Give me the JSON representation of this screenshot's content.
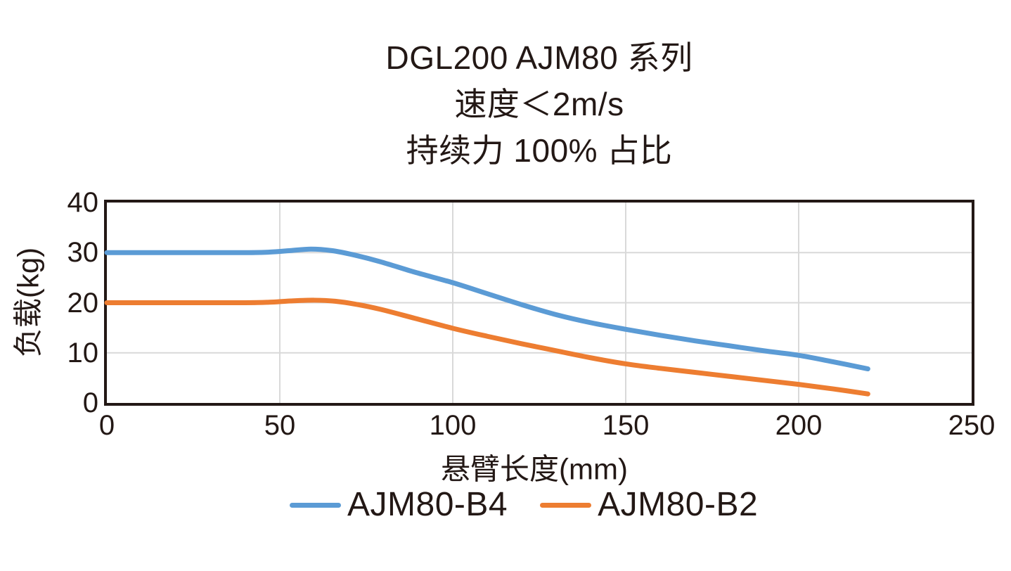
{
  "title": {
    "line1": "DGL200 AJM80 系列",
    "line2": "速度＜2m/s",
    "line3": "持续力 100% 占比"
  },
  "colors": {
    "series_blue": "#5B9BD5",
    "series_orange": "#ED7D31",
    "gridline": "#D9D9D9",
    "axis_border": "#231815",
    "text": "#231815",
    "background": "#FFFFFF"
  },
  "chart_data": {
    "type": "line",
    "title": "DGL200 AJM80 系列",
    "subtitle": [
      "速度＜2m/s",
      "持续力 100% 占比"
    ],
    "xlabel": "悬臂长度(mm)",
    "ylabel": "负载(kg)",
    "xlim": [
      0,
      250
    ],
    "ylim": [
      0,
      40
    ],
    "x_ticks": [
      0,
      50,
      100,
      150,
      200,
      250
    ],
    "y_ticks": [
      0,
      10,
      20,
      30,
      40
    ],
    "grid": true,
    "legend_position": "bottom",
    "series": [
      {
        "name": "AJM80-B4",
        "color": "#5B9BD5",
        "points": [
          [
            0,
            30
          ],
          [
            20,
            30
          ],
          [
            40,
            30
          ],
          [
            47,
            30.1
          ],
          [
            53,
            30.4
          ],
          [
            59,
            30.7
          ],
          [
            65,
            30.4
          ],
          [
            71,
            29.6
          ],
          [
            79,
            28.2
          ],
          [
            89,
            26.1
          ],
          [
            100,
            24
          ],
          [
            110,
            21.8
          ],
          [
            120,
            19.6
          ],
          [
            130,
            17.6
          ],
          [
            140,
            16.0
          ],
          [
            150,
            14.7
          ],
          [
            160,
            13.5
          ],
          [
            170,
            12.4
          ],
          [
            180,
            11.4
          ],
          [
            190,
            10.4
          ],
          [
            200,
            9.5
          ],
          [
            210,
            8.2
          ],
          [
            220,
            6.8
          ]
        ]
      },
      {
        "name": "AJM80-B2",
        "color": "#ED7D31",
        "points": [
          [
            0,
            20
          ],
          [
            20,
            20
          ],
          [
            40,
            20
          ],
          [
            47,
            20.1
          ],
          [
            53,
            20.35
          ],
          [
            60,
            20.5
          ],
          [
            66,
            20.3
          ],
          [
            72,
            19.7
          ],
          [
            79,
            18.7
          ],
          [
            89,
            16.9
          ],
          [
            100,
            14.9
          ],
          [
            110,
            13.3
          ],
          [
            120,
            11.8
          ],
          [
            130,
            10.4
          ],
          [
            140,
            9.0
          ],
          [
            150,
            7.8
          ],
          [
            160,
            6.9
          ],
          [
            170,
            6.1
          ],
          [
            180,
            5.3
          ],
          [
            190,
            4.5
          ],
          [
            200,
            3.7
          ],
          [
            210,
            2.8
          ],
          [
            220,
            1.8
          ]
        ]
      }
    ]
  }
}
